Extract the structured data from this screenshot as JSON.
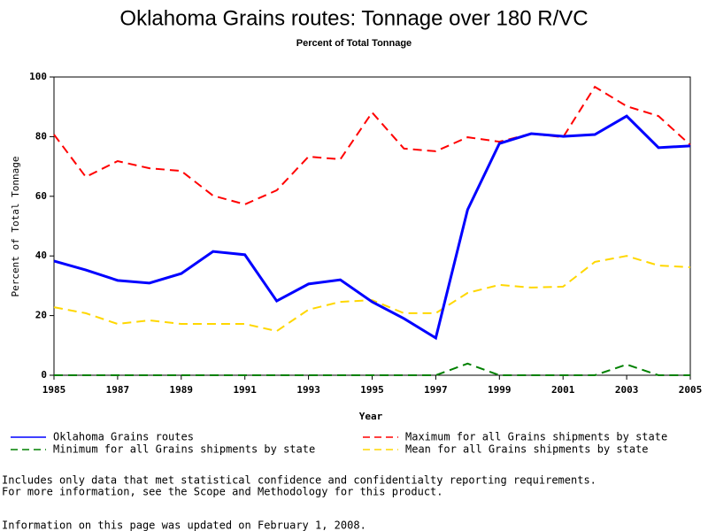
{
  "chart_data": {
    "type": "line",
    "title": "Oklahoma Grains routes: Tonnage over 180 R/VC",
    "subtitle": "Percent of Total Tonnage",
    "x_label": "Year",
    "y_label": "Percent of Total Tonnage",
    "x": [
      1985,
      1986,
      1987,
      1988,
      1989,
      1990,
      1991,
      1992,
      1993,
      1994,
      1995,
      1996,
      1997,
      1998,
      1999,
      2000,
      2001,
      2002,
      2003,
      2004,
      2005
    ],
    "series": [
      {
        "name": "Oklahoma Grains routes",
        "color": "#0000ff",
        "style": "solid",
        "values": [
          38.3,
          35.3,
          31.8,
          30.9,
          34.1,
          41.5,
          40.4,
          24.9,
          30.6,
          32,
          24.6,
          19,
          12.5,
          55.5,
          77.7,
          81,
          80.1,
          80.7,
          86.9,
          76.3,
          76.9
        ]
      },
      {
        "name": "Maximum for all Grains shipments by state",
        "color": "#ff0000",
        "style": "dashed",
        "values": [
          80.7,
          66.5,
          71.8,
          69.4,
          68.5,
          60.2,
          57.3,
          62,
          73.3,
          72.4,
          88.1,
          76,
          75.1,
          79.8,
          78.3,
          81,
          79.8,
          96.7,
          90.2,
          86.9,
          77.2
        ]
      },
      {
        "name": "Minimum for all Grains shipments by state",
        "color": "#008000",
        "style": "dashed",
        "values": [
          0,
          0,
          0,
          0,
          0,
          0,
          0,
          0,
          0,
          0,
          0,
          0,
          0,
          3.9,
          0,
          0,
          0,
          0,
          3.6,
          0,
          0
        ]
      },
      {
        "name": "Mean for all Grains shipments by state",
        "color": "#ffd700",
        "style": "dashed",
        "values": [
          22.8,
          20.8,
          17.2,
          18.4,
          17.2,
          17.2,
          17.2,
          14.8,
          22,
          24.6,
          25.2,
          20.8,
          20.8,
          27.6,
          30.3,
          29.4,
          29.7,
          38,
          40,
          36.8,
          36.2
        ]
      }
    ],
    "xlim": [
      1985,
      2005
    ],
    "xticks": [
      1985,
      1987,
      1989,
      1991,
      1993,
      1995,
      1997,
      1999,
      2001,
      2003,
      2005
    ],
    "ylim": [
      0,
      100
    ],
    "yticks": [
      0,
      20,
      40,
      60,
      80,
      100
    ],
    "notes": [
      "Includes only data that met statistical confidence and confidentialty reporting requirements.",
      "For more information, see the Scope and Methodology for this product.",
      "Information on this page was updated on February 1, 2008."
    ]
  }
}
